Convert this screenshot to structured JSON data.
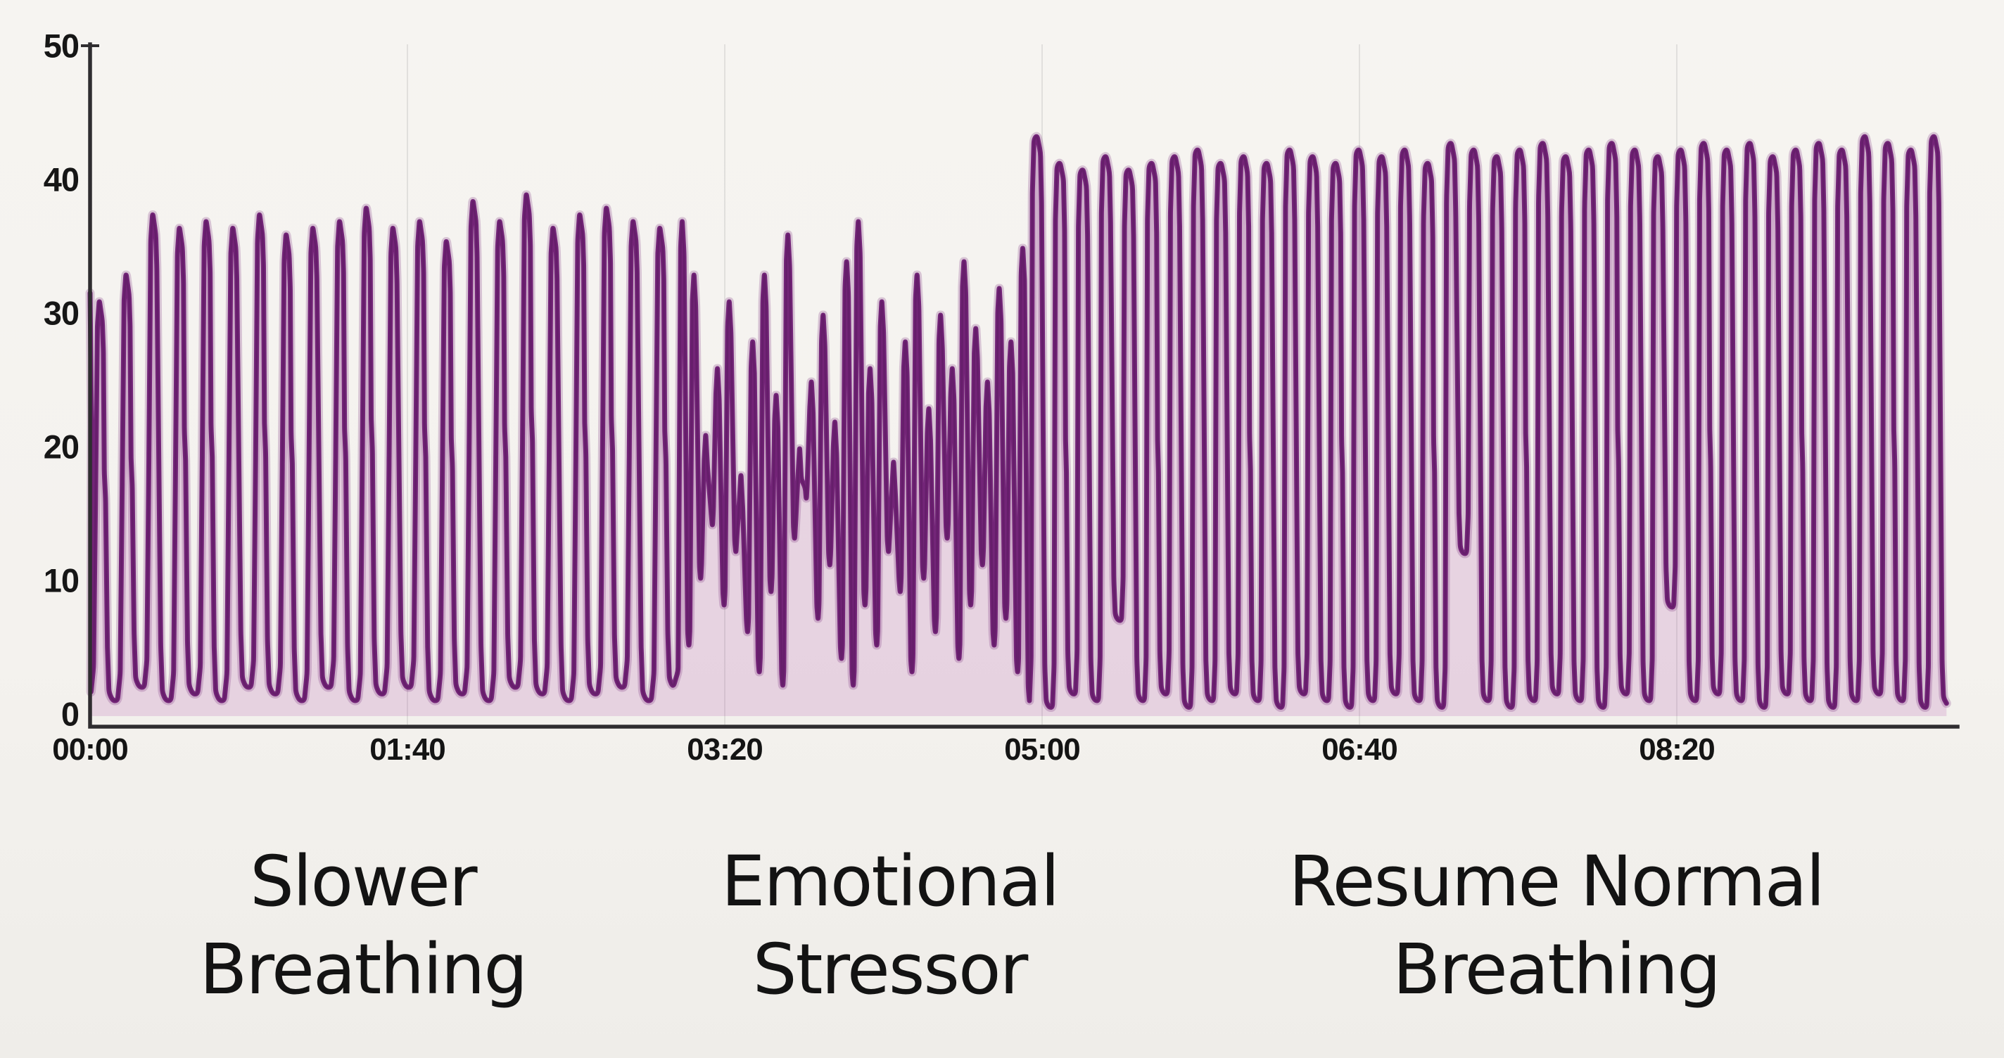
{
  "chart_data": {
    "type": "line",
    "title": "",
    "xlabel": "",
    "ylabel": "",
    "description": "Hand-drawn style respiration (breathing) waveform trace over ~10 minutes showing three annotated phases: slower breathing, an emotional stressor with fast irregular breaths, then resumption of normal regular breathing.",
    "line_color": "#6e1c73",
    "line_core_color": "#4a1050",
    "fill_color": "rgba(164,62,158,0.17)",
    "axis_color": "#2f2d30",
    "gridline_color": "rgba(120,120,120,0.16)",
    "background_color": "#f4f2ee",
    "x_axis": {
      "tick_labels": [
        "00:00",
        "01:40",
        "03:20",
        "05:00",
        "06:40",
        "08:20"
      ],
      "tick_seconds": [
        0,
        100,
        200,
        300,
        400,
        500
      ],
      "range_seconds": [
        0,
        586
      ],
      "grid": true
    },
    "y_axis": {
      "tick_labels": [
        "0",
        "10",
        "20",
        "30",
        "40",
        "50"
      ],
      "ticks": [
        0,
        10,
        20,
        30,
        40,
        50
      ],
      "range": [
        0,
        50
      ],
      "grid": false
    },
    "start_value": 31.5,
    "phases": [
      {
        "label": "Slower Breathing",
        "label_line1": "Slower",
        "label_line2": "Breathing",
        "label_center_time": 86,
        "t_start": 0,
        "t_end": 185,
        "style": "slow",
        "breaths_per_min": 7,
        "peaks": [
          31,
          33,
          37.5,
          36.5,
          37,
          36.5,
          37.5,
          36,
          36.5,
          37,
          38,
          36.5,
          37,
          35.5,
          38.5,
          37,
          39,
          36.5,
          37.5,
          38,
          37,
          36.5
        ],
        "valleys": [
          1.5,
          1,
          2,
          1,
          1.5,
          1,
          2,
          1.5,
          1,
          2,
          1,
          1.5,
          2,
          1,
          1.5,
          1,
          2,
          1.5,
          1,
          1.5,
          2,
          1
        ]
      },
      {
        "label": "Emotional Stressor",
        "label_line1": "Emotional",
        "label_line2": "Stressor",
        "label_center_time": 252,
        "t_start": 185,
        "t_end": 296,
        "style": "irregular",
        "breaths_per_min": 16,
        "peaks": [
          37,
          33,
          21,
          26,
          31,
          18,
          28,
          33,
          24,
          36,
          20,
          25,
          30,
          22,
          34,
          37,
          26,
          31,
          19,
          28,
          33,
          23,
          30,
          26,
          34,
          29,
          25,
          32,
          28,
          35
        ],
        "valleys": [
          2,
          5,
          10,
          14,
          8,
          12,
          6,
          3,
          9,
          2,
          13,
          16,
          7,
          11,
          4,
          2,
          8,
          5,
          12,
          9,
          3,
          10,
          6,
          13,
          4,
          8,
          11,
          5,
          7,
          3
        ]
      },
      {
        "label": "Resume Normal Breathing",
        "label_line1": "Resume Normal",
        "label_line2": "Breathing",
        "label_center_time": 462,
        "t_start": 296,
        "t_end": 586,
        "style": "normal",
        "breaths_per_min": 8,
        "peaks": [
          43,
          41,
          40.5,
          41.5,
          40.5,
          41,
          41.5,
          42,
          41,
          41.5,
          41,
          42,
          41.5,
          41,
          42,
          41.5,
          42,
          41,
          42.5,
          42,
          41.5,
          42,
          42.5,
          41.5,
          42,
          42.5,
          42,
          41.5,
          42,
          42.5,
          42,
          42.5,
          41.5,
          42,
          42.5,
          42,
          43,
          42.5,
          42,
          43
        ],
        "valleys": [
          1,
          0.5,
          1.5,
          1,
          7,
          1,
          1.5,
          0.5,
          1,
          1.5,
          1,
          0.5,
          1.5,
          1,
          0.5,
          1,
          1.5,
          1,
          0.5,
          12,
          1,
          0.5,
          1,
          1.5,
          1,
          0.5,
          1.5,
          1,
          8,
          1,
          1.5,
          1,
          0.5,
          1.5,
          1,
          0.5,
          1,
          1.5,
          1,
          0.5
        ]
      }
    ]
  }
}
